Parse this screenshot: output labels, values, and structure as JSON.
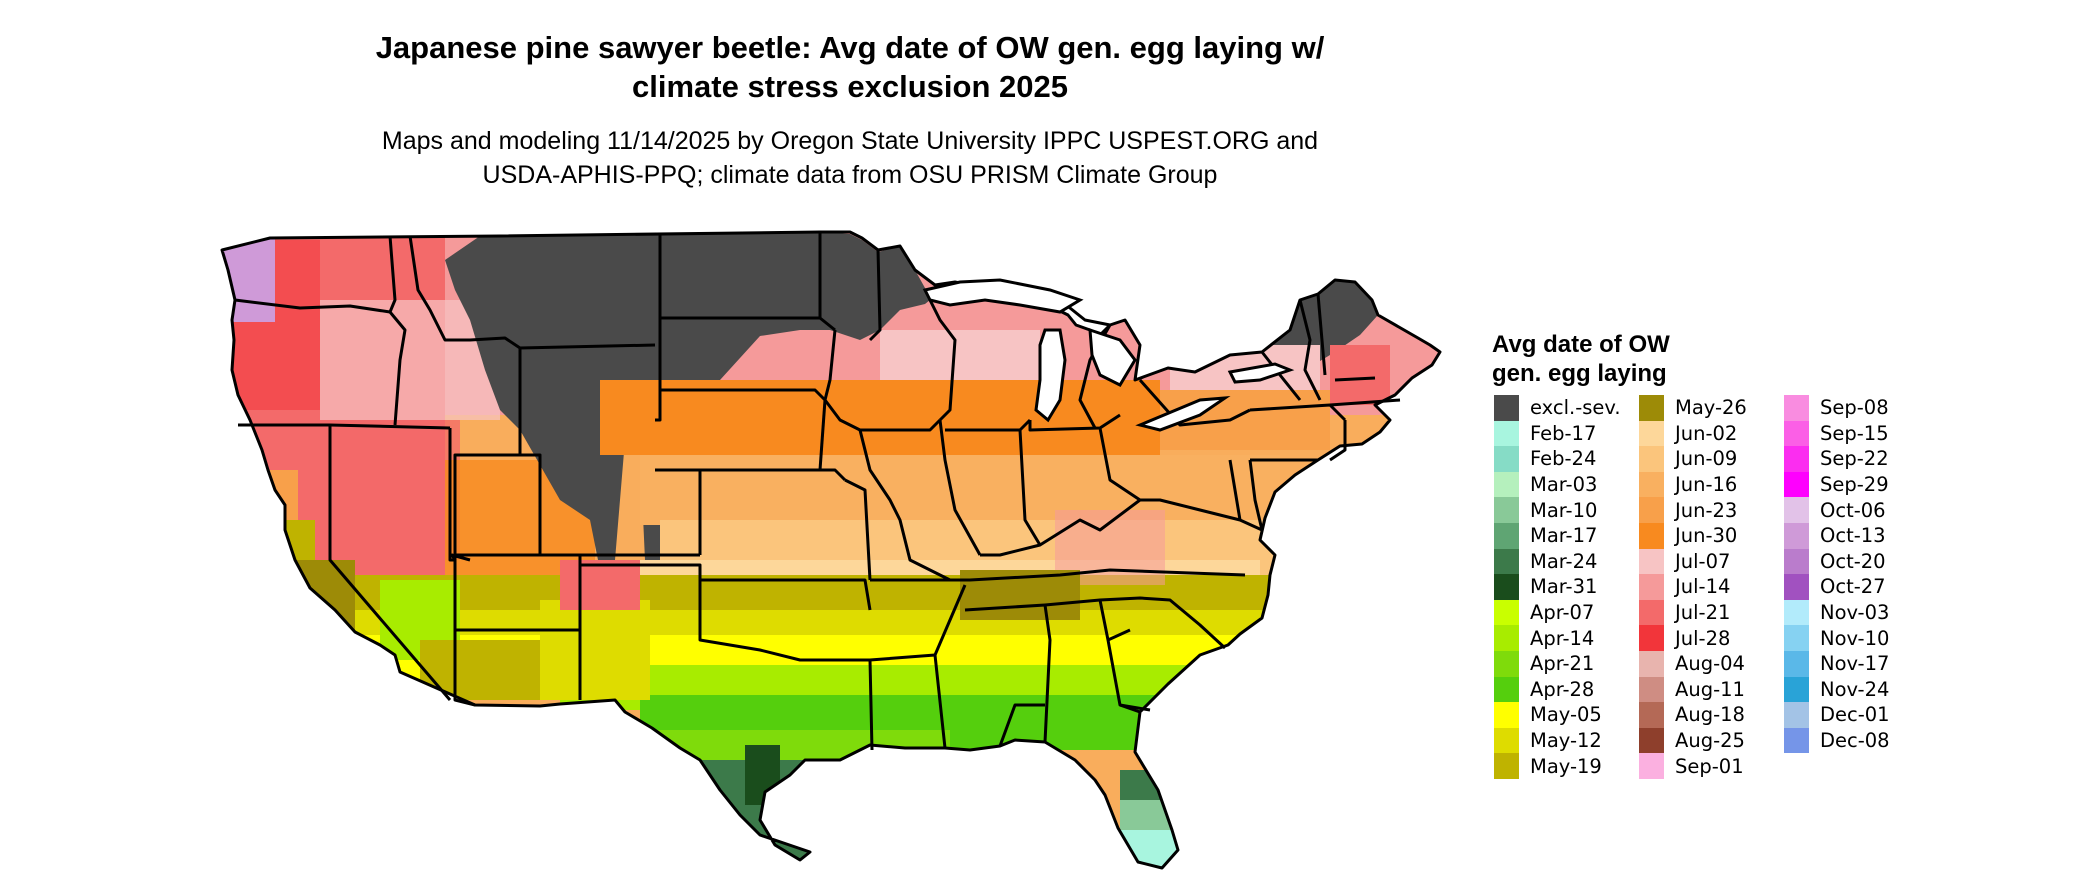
{
  "title": {
    "line1": "Japanese pine sawyer beetle: Avg date of OW gen. egg laying w/",
    "line2": "climate stress exclusion 2025"
  },
  "subtitle": {
    "line1": "Maps and modeling 11/14/2025 by Oregon State University IPPC USPEST.ORG and",
    "line2": "USDA-APHIS-PPQ; climate data from OSU PRISM Climate Group"
  },
  "legend": {
    "title_line1": "Avg date of OW",
    "title_line2": "gen. egg laying",
    "columns": [
      [
        {
          "label": "excl.-sev.",
          "color": "#4a4a4a"
        },
        {
          "label": "Feb-17",
          "color": "#a8f5df"
        },
        {
          "label": "Feb-24",
          "color": "#86dcc6"
        },
        {
          "label": "Mar-03",
          "color": "#b5f0bd"
        },
        {
          "label": "Mar-10",
          "color": "#89c998"
        },
        {
          "label": "Mar-17",
          "color": "#5fa573"
        },
        {
          "label": "Mar-24",
          "color": "#3c7a4a"
        },
        {
          "label": "Mar-31",
          "color": "#1a4d1c"
        },
        {
          "label": "Apr-07",
          "color": "#c9ff00"
        },
        {
          "label": "Apr-14",
          "color": "#a8ec00"
        },
        {
          "label": "Apr-21",
          "color": "#7fdb0b"
        },
        {
          "label": "Apr-28",
          "color": "#55cf0d"
        },
        {
          "label": "May-05",
          "color": "#ffff00"
        },
        {
          "label": "May-12",
          "color": "#dedc00"
        },
        {
          "label": "May-19",
          "color": "#bfb300"
        }
      ],
      [
        {
          "label": "May-26",
          "color": "#9d8b07"
        },
        {
          "label": "Jun-02",
          "color": "#fdd79a"
        },
        {
          "label": "Jun-09",
          "color": "#fbc57c"
        },
        {
          "label": "Jun-16",
          "color": "#f9b060"
        },
        {
          "label": "Jun-23",
          "color": "#f8a04a"
        },
        {
          "label": "Jun-30",
          "color": "#f88a1f"
        },
        {
          "label": "Jul-07",
          "color": "#f7c4c4"
        },
        {
          "label": "Jul-14",
          "color": "#f59a9a"
        },
        {
          "label": "Jul-21",
          "color": "#f36a6a"
        },
        {
          "label": "Jul-28",
          "color": "#f2353a"
        },
        {
          "label": "Aug-04",
          "color": "#e8b4ae"
        },
        {
          "label": "Aug-11",
          "color": "#cf8d83"
        },
        {
          "label": "Aug-18",
          "color": "#b46956"
        },
        {
          "label": "Aug-25",
          "color": "#8e3f2c"
        },
        {
          "label": "Sep-01",
          "color": "#fbb0e0"
        }
      ],
      [
        {
          "label": "Sep-08",
          "color": "#f98ce0"
        },
        {
          "label": "Sep-15",
          "color": "#fb5fe6"
        },
        {
          "label": "Sep-22",
          "color": "#fb2df0"
        },
        {
          "label": "Sep-29",
          "color": "#fe00fe"
        },
        {
          "label": "Oct-06",
          "color": "#e2c2e8"
        },
        {
          "label": "Oct-13",
          "color": "#cf9ad8"
        },
        {
          "label": "Oct-20",
          "color": "#ba7ccc"
        },
        {
          "label": "Oct-27",
          "color": "#a151c0"
        },
        {
          "label": "Nov-03",
          "color": "#b2ebfb"
        },
        {
          "label": "Nov-10",
          "color": "#86d2f2"
        },
        {
          "label": "Nov-17",
          "color": "#5ab8e8"
        },
        {
          "label": "Nov-24",
          "color": "#29a3d7"
        },
        {
          "label": "Dec-01",
          "color": "#a3c3e6"
        },
        {
          "label": "Dec-08",
          "color": "#7595e8"
        }
      ]
    ]
  }
}
